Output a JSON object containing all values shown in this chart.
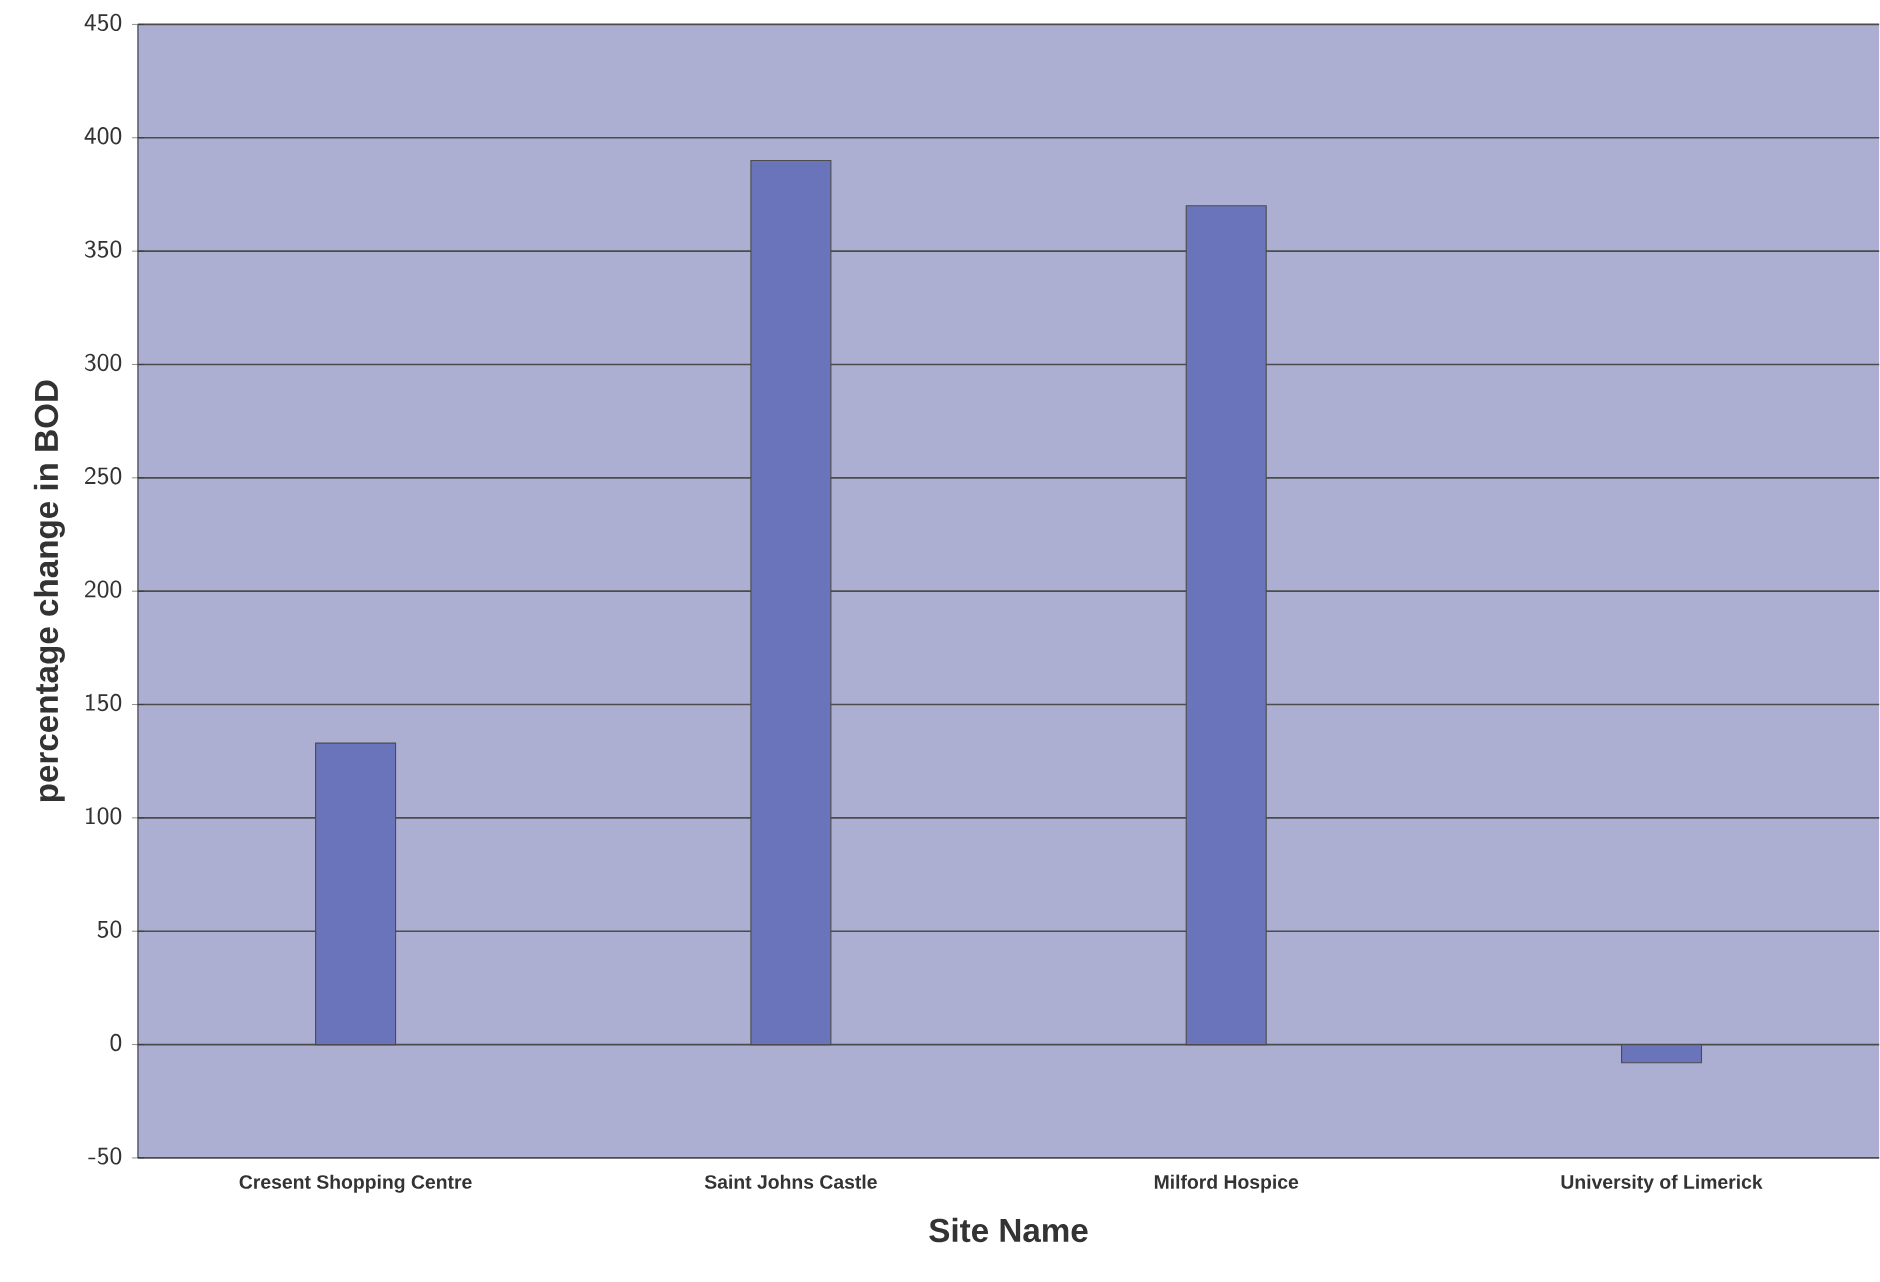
{
  "chart_data": {
    "type": "bar",
    "xlabel": "Site Name",
    "ylabel": "percentage change in BOD",
    "categories": [
      "Cresent Shopping Centre",
      "Saint Johns Castle",
      "Milford Hospice",
      "University of Limerick"
    ],
    "values": [
      133,
      390,
      370,
      -8
    ],
    "color": "#6a74ba",
    "ylim": [
      -50,
      450
    ],
    "yticks": [
      -50,
      0,
      50,
      100,
      150,
      200,
      250,
      300,
      350,
      400,
      450
    ],
    "grid": "y"
  }
}
